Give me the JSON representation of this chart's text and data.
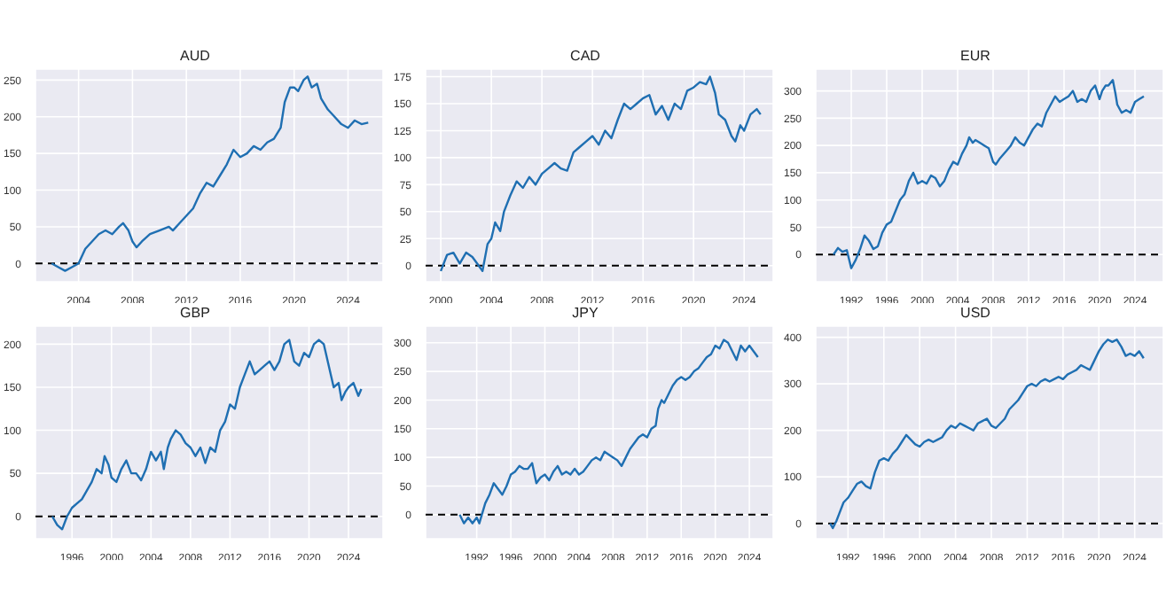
{
  "chart_data": [
    {
      "type": "line",
      "title": "AUD",
      "color": "#1f6fb2",
      "grid": true,
      "xlim": [
        2000.8,
        2026.6
      ],
      "xticks": [
        2004,
        2008,
        2012,
        2016,
        2020,
        2024
      ],
      "ylim": [
        -25,
        265
      ],
      "yticks": [
        0,
        50,
        100,
        150,
        200,
        250
      ],
      "ref_lines": [
        {
          "axis": "y",
          "value": 0,
          "color": "#000000",
          "line_style": "dashed"
        }
      ],
      "x": [
        2002,
        2002.5,
        2003,
        2003.5,
        2004,
        2004.5,
        2005,
        2005.5,
        2006,
        2006.5,
        2007,
        2007.3,
        2007.7,
        2008,
        2008.3,
        2008.7,
        2009.3,
        2010,
        2010.7,
        2011,
        2011.5,
        2012,
        2012.5,
        2013,
        2013.5,
        2014,
        2014.5,
        2015,
        2015.5,
        2016,
        2016.5,
        2017,
        2017.5,
        2018,
        2018.5,
        2019,
        2019.3,
        2019.7,
        2020,
        2020.3,
        2020.7,
        2021,
        2021.3,
        2021.7,
        2022,
        2022.5,
        2023,
        2023.5,
        2024,
        2024.5,
        2025,
        2025.5
      ],
      "values": [
        0,
        -5,
        -10,
        -5,
        0,
        20,
        30,
        40,
        45,
        40,
        50,
        55,
        45,
        30,
        22,
        30,
        40,
        45,
        50,
        45,
        55,
        65,
        75,
        95,
        110,
        105,
        120,
        135,
        155,
        145,
        150,
        160,
        155,
        165,
        170,
        185,
        220,
        240,
        240,
        235,
        250,
        255,
        240,
        245,
        225,
        210,
        200,
        190,
        185,
        195,
        190,
        192
      ]
    },
    {
      "type": "line",
      "title": "CAD",
      "color": "#1f6fb2",
      "grid": true,
      "xlim": [
        1998.8,
        2026.3
      ],
      "xticks": [
        2000,
        2004,
        2008,
        2012,
        2016,
        2020,
        2024
      ],
      "ylim": [
        -15,
        182
      ],
      "yticks": [
        0,
        25,
        50,
        75,
        100,
        125,
        150,
        175
      ],
      "ref_lines": [
        {
          "axis": "y",
          "value": 0,
          "color": "#000000",
          "line_style": "dashed"
        }
      ],
      "x": [
        2000,
        2000.5,
        2001,
        2001.5,
        2002,
        2002.5,
        2003,
        2003.3,
        2003.7,
        2004,
        2004.3,
        2004.7,
        2005,
        2005.5,
        2006,
        2006.5,
        2007,
        2007.5,
        2008,
        2008.5,
        2009,
        2009.5,
        2010,
        2010.5,
        2011,
        2011.5,
        2012,
        2012.5,
        2013,
        2013.5,
        2014,
        2014.5,
        2015,
        2015.5,
        2016,
        2016.5,
        2017,
        2017.5,
        2018,
        2018.5,
        2019,
        2019.5,
        2020,
        2020.5,
        2021,
        2021.3,
        2021.7,
        2022,
        2022.5,
        2023,
        2023.3,
        2023.7,
        2024,
        2024.5,
        2025,
        2025.3
      ],
      "values": [
        -5,
        10,
        12,
        2,
        12,
        8,
        0,
        -5,
        20,
        25,
        40,
        32,
        50,
        65,
        78,
        72,
        82,
        75,
        85,
        90,
        95,
        90,
        88,
        105,
        110,
        115,
        120,
        112,
        125,
        118,
        135,
        150,
        145,
        150,
        155,
        158,
        140,
        148,
        135,
        150,
        145,
        162,
        165,
        170,
        168,
        175,
        160,
        140,
        135,
        120,
        115,
        130,
        125,
        140,
        145,
        140
      ]
    },
    {
      "type": "line",
      "title": "EUR",
      "color": "#1f6fb2",
      "grid": true,
      "xlim": [
        1988,
        2027.2
      ],
      "xticks": [
        1992,
        1996,
        2000,
        2004,
        2008,
        2012,
        2016,
        2020,
        2024
      ],
      "ylim": [
        -50,
        340
      ],
      "yticks": [
        0,
        50,
        100,
        150,
        200,
        250,
        300
      ],
      "ref_lines": [
        {
          "axis": "y",
          "value": 0,
          "color": "#000000",
          "line_style": "dashed"
        }
      ],
      "x": [
        1990,
        1990.5,
        1991,
        1991.5,
        1992,
        1992.5,
        1993,
        1993.5,
        1994,
        1994.5,
        1995,
        1995.5,
        1996,
        1996.5,
        1997,
        1997.5,
        1998,
        1998.5,
        1999,
        1999.5,
        2000,
        2000.5,
        2001,
        2001.5,
        2002,
        2002.5,
        2003,
        2003.5,
        2004,
        2004.5,
        2005,
        2005.3,
        2005.7,
        2006,
        2006.5,
        2007,
        2007.5,
        2008,
        2008.3,
        2008.7,
        2009.5,
        2010,
        2010.5,
        2011,
        2011.5,
        2012,
        2012.5,
        2013,
        2013.5,
        2014,
        2014.5,
        2015,
        2015.5,
        2016,
        2016.5,
        2017,
        2017.5,
        2018,
        2018.5,
        2019,
        2019.5,
        2020,
        2020.3,
        2020.7,
        2021,
        2021.5,
        2021.8,
        2022,
        2022.5,
        2023,
        2023.5,
        2024,
        2024.5,
        2025
      ],
      "values": [
        0,
        12,
        5,
        8,
        -25,
        -10,
        10,
        35,
        25,
        10,
        15,
        40,
        55,
        60,
        80,
        100,
        110,
        135,
        150,
        130,
        135,
        130,
        145,
        140,
        125,
        135,
        155,
        170,
        165,
        185,
        200,
        215,
        205,
        210,
        205,
        200,
        195,
        170,
        165,
        175,
        190,
        200,
        215,
        205,
        200,
        215,
        230,
        240,
        235,
        260,
        275,
        290,
        280,
        285,
        290,
        300,
        280,
        285,
        280,
        300,
        310,
        285,
        300,
        310,
        310,
        320,
        295,
        275,
        260,
        265,
        260,
        280,
        285,
        290
      ]
    },
    {
      "type": "line",
      "title": "GBP",
      "color": "#1f6fb2",
      "grid": true,
      "xlim": [
        1992.3,
        2027.5
      ],
      "xticks": [
        1996,
        2000,
        2004,
        2008,
        2012,
        2016,
        2020,
        2024
      ],
      "ylim": [
        -26,
        221
      ],
      "yticks": [
        0,
        50,
        100,
        150,
        200
      ],
      "ref_lines": [
        {
          "axis": "y",
          "value": 0,
          "color": "#000000",
          "line_style": "dashed"
        }
      ],
      "x": [
        1994,
        1994.5,
        1995,
        1995.5,
        1996,
        1996.5,
        1997,
        1997.5,
        1998,
        1998.5,
        1999,
        1999.3,
        1999.7,
        2000,
        2000.5,
        2001,
        2001.5,
        2002,
        2002.5,
        2003,
        2003.5,
        2004,
        2004.5,
        2005,
        2005.3,
        2005.7,
        2006,
        2006.5,
        2007,
        2007.5,
        2008,
        2008.5,
        2009,
        2009.5,
        2010,
        2010.5,
        2011,
        2011.5,
        2012,
        2012.5,
        2013,
        2013.5,
        2014,
        2014.5,
        2015,
        2015.5,
        2016,
        2016.5,
        2017,
        2017.5,
        2018,
        2018.5,
        2019,
        2019.5,
        2020,
        2020.5,
        2021,
        2021.5,
        2022,
        2022.5,
        2023,
        2023.3,
        2023.7,
        2024,
        2024.5,
        2025,
        2025.3
      ],
      "values": [
        0,
        -10,
        -15,
        0,
        10,
        15,
        20,
        30,
        40,
        55,
        50,
        70,
        60,
        45,
        40,
        55,
        65,
        50,
        50,
        42,
        55,
        75,
        65,
        75,
        55,
        80,
        90,
        100,
        95,
        85,
        80,
        70,
        80,
        62,
        80,
        75,
        100,
        110,
        130,
        125,
        150,
        165,
        180,
        165,
        170,
        175,
        180,
        170,
        180,
        200,
        205,
        180,
        175,
        190,
        185,
        200,
        205,
        200,
        175,
        150,
        155,
        135,
        145,
        150,
        155,
        140,
        148
      ]
    },
    {
      "type": "line",
      "title": "JPY",
      "color": "#1f6fb2",
      "grid": true,
      "xlim": [
        1986,
        2026.8
      ],
      "xticks": [
        {
          "value": 1992,
          "label": "1992"
        },
        1996,
        2000,
        2004,
        2008,
        2012,
        2016,
        2020,
        2024
      ],
      "ylim": [
        -42,
        329
      ],
      "yticks": [
        0,
        50,
        100,
        150,
        200,
        250,
        300
      ],
      "ref_lines": [
        {
          "axis": "y",
          "value": 0,
          "color": "#000000",
          "line_style": "dashed"
        }
      ],
      "x": [
        1990,
        1990.5,
        1991,
        1991.5,
        1992,
        1992.3,
        1992.7,
        1993,
        1993.5,
        1994,
        1994.5,
        1995,
        1995.5,
        1996,
        1996.5,
        1997,
        1997.5,
        1998,
        1998.5,
        1999,
        1999.5,
        2000,
        2000.5,
        2001,
        2001.5,
        2002,
        2002.5,
        2003,
        2003.5,
        2004,
        2004.5,
        2005,
        2005.5,
        2006,
        2006.5,
        2007,
        2007.5,
        2008,
        2008.5,
        2009,
        2009.5,
        2010,
        2010.5,
        2011,
        2011.5,
        2012,
        2012.5,
        2013,
        2013.3,
        2013.7,
        2014,
        2014.5,
        2015,
        2015.5,
        2016,
        2016.5,
        2017,
        2017.5,
        2018,
        2018.5,
        2019,
        2019.5,
        2020,
        2020.5,
        2021,
        2021.5,
        2022,
        2022.5,
        2023,
        2023.5,
        2024,
        2024.5,
        2025
      ],
      "values": [
        0,
        -15,
        -5,
        -15,
        -5,
        -15,
        5,
        20,
        35,
        55,
        45,
        35,
        50,
        70,
        75,
        85,
        80,
        80,
        90,
        55,
        65,
        70,
        60,
        75,
        85,
        70,
        75,
        70,
        80,
        70,
        75,
        85,
        95,
        100,
        95,
        110,
        105,
        100,
        95,
        85,
        100,
        115,
        125,
        135,
        140,
        135,
        150,
        155,
        185,
        200,
        195,
        210,
        225,
        235,
        240,
        235,
        240,
        250,
        255,
        265,
        275,
        280,
        295,
        290,
        305,
        300,
        285,
        270,
        295,
        285,
        295,
        285,
        275
      ]
    },
    {
      "type": "line",
      "title": "USD",
      "color": "#1f6fb2",
      "grid": true,
      "xlim": [
        1988.4,
        2027.2
      ],
      "xticks": [
        1992,
        1996,
        2000,
        2004,
        2008,
        2012,
        2016,
        2020,
        2024
      ],
      "ylim": [
        -33,
        424
      ],
      "yticks": [
        0,
        100,
        200,
        300,
        400
      ],
      "ref_lines": [
        {
          "axis": "y",
          "value": 0,
          "color": "#000000",
          "line_style": "dashed"
        }
      ],
      "x": [
        1990,
        1990.3,
        1990.7,
        1991,
        1991.5,
        1992,
        1992.5,
        1993,
        1993.5,
        1994,
        1994.5,
        1995,
        1995.5,
        1996,
        1996.5,
        1997,
        1997.5,
        1998,
        1998.5,
        1999,
        1999.5,
        2000,
        2000.5,
        2001,
        2001.5,
        2002,
        2002.5,
        2003,
        2003.5,
        2004,
        2004.5,
        2005,
        2005.5,
        2006,
        2006.5,
        2007,
        2007.5,
        2008,
        2008.5,
        2009,
        2009.5,
        2010,
        2010.5,
        2011,
        2011.5,
        2012,
        2012.5,
        2013,
        2013.5,
        2014,
        2014.5,
        2015,
        2015.5,
        2016,
        2016.5,
        2017,
        2017.5,
        2018,
        2018.5,
        2019,
        2019.5,
        2020,
        2020.5,
        2021,
        2021.5,
        2022,
        2022.5,
        2023,
        2023.5,
        2024,
        2024.5,
        2025
      ],
      "values": [
        0,
        -10,
        5,
        20,
        45,
        55,
        70,
        85,
        90,
        80,
        75,
        110,
        135,
        140,
        135,
        150,
        160,
        175,
        190,
        180,
        170,
        165,
        175,
        180,
        175,
        180,
        185,
        200,
        210,
        205,
        215,
        210,
        205,
        200,
        215,
        220,
        225,
        210,
        205,
        215,
        225,
        245,
        255,
        265,
        280,
        295,
        300,
        295,
        305,
        310,
        305,
        310,
        315,
        310,
        320,
        325,
        330,
        340,
        335,
        330,
        350,
        370,
        385,
        395,
        390,
        395,
        380,
        360,
        365,
        360,
        370,
        355
      ]
    }
  ]
}
